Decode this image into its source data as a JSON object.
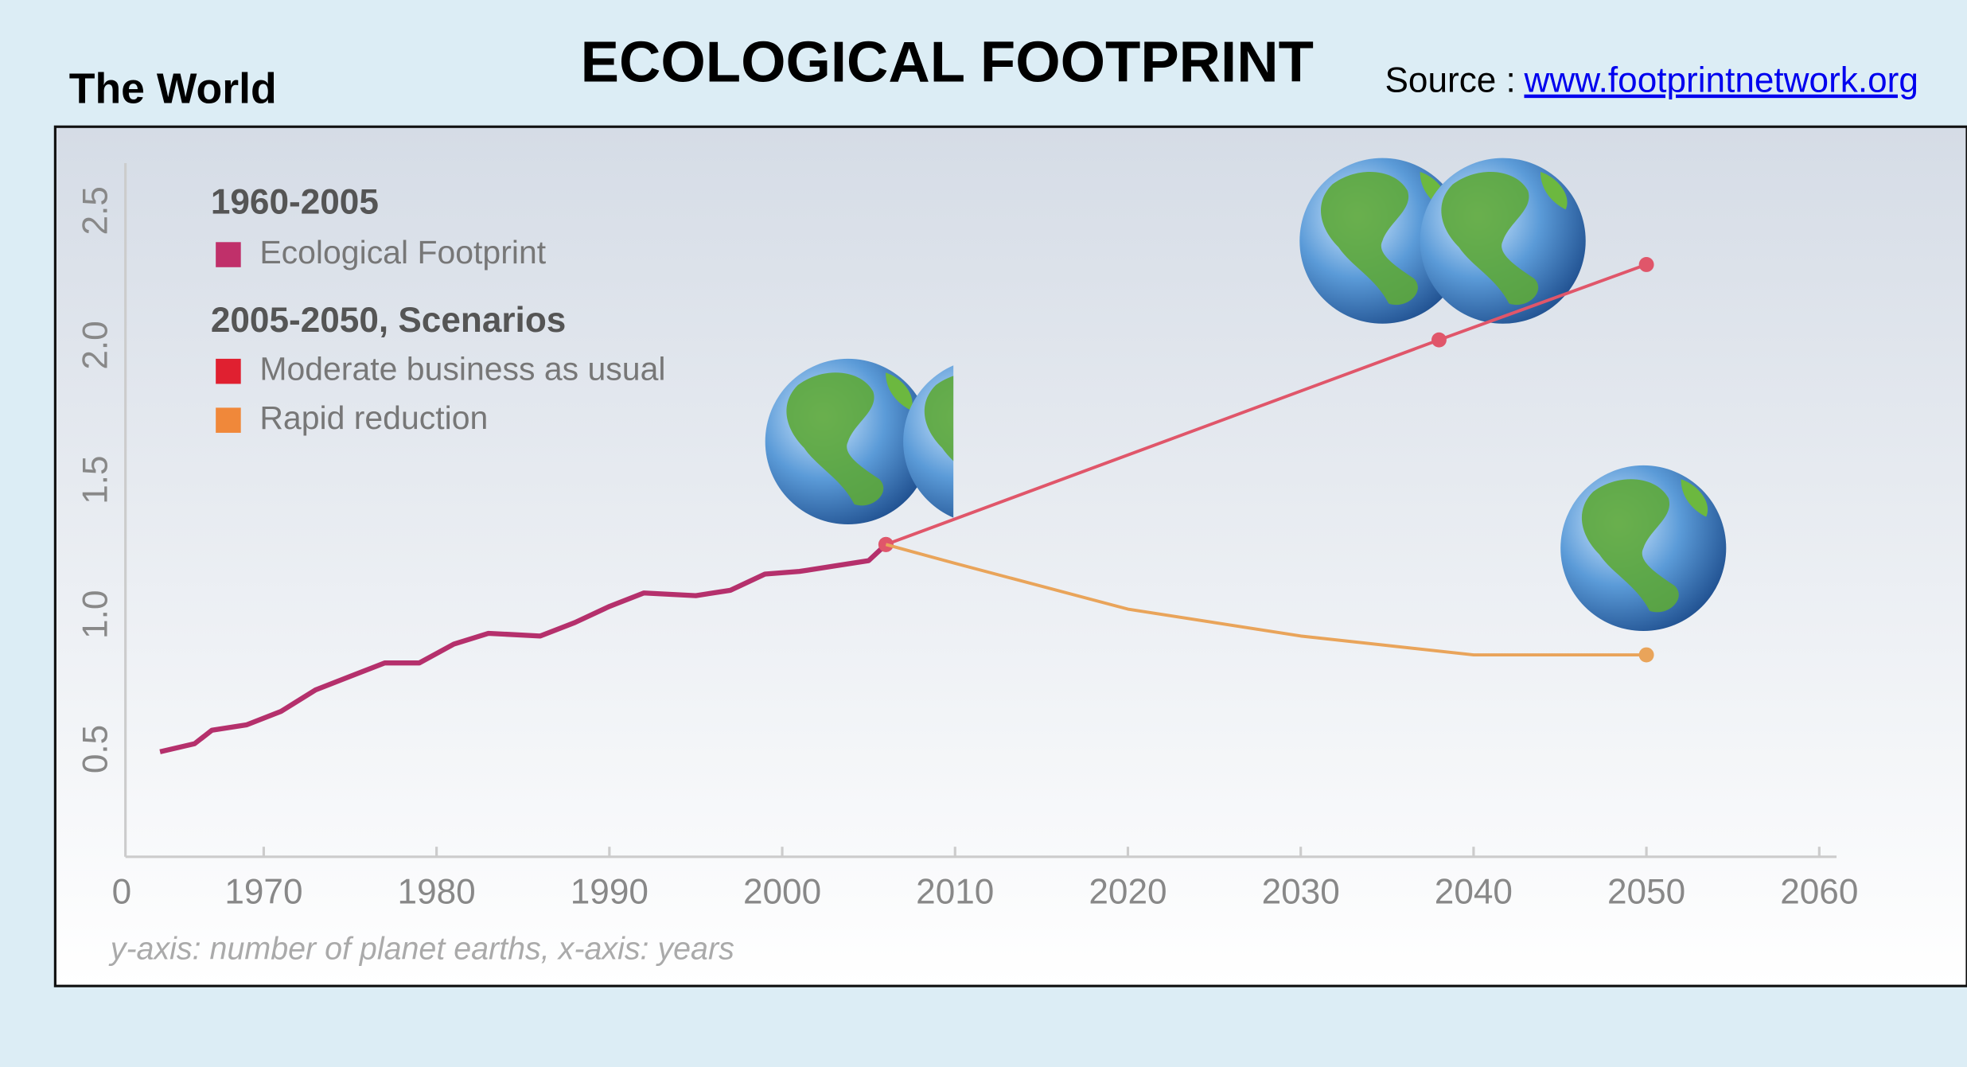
{
  "header": {
    "region": "The World",
    "title": "ECOLOGICAL FOOTPRINT",
    "source_label": "Source :",
    "source_link": "www.footprintnetwork.org"
  },
  "chart_data": {
    "type": "line",
    "legend_titles": [
      "1960-2005",
      "2005-2050, Scenarios"
    ],
    "footnote": "y-axis: number of planet earths, x-axis: years",
    "xlim": [
      1962,
      2061
    ],
    "xticks": [
      1970,
      1980,
      1990,
      2000,
      2010,
      2020,
      2030,
      2040,
      2050,
      2060
    ],
    "ylim": [
      0.1,
      2.77
    ],
    "yticks": [
      0,
      0.5,
      {
        "value": 1,
        "label": "1.0"
      },
      1.5,
      {
        "value": 2,
        "label": "2.0"
      },
      2.5
    ],
    "grid": false,
    "series": [
      {
        "name": "Ecological Footprint",
        "color": "#b5306c",
        "legend_color": "#c0306a",
        "x": [
          1964,
          1966,
          1967,
          1969,
          1971,
          1973,
          1975,
          1977,
          1979,
          1981,
          1983,
          1986,
          1988,
          1990,
          1992,
          1995,
          1997,
          1999,
          2001,
          2003,
          2005,
          2006
        ],
        "values": [
          0.49,
          0.52,
          0.57,
          0.59,
          0.64,
          0.72,
          0.77,
          0.82,
          0.82,
          0.89,
          0.93,
          0.92,
          0.97,
          1.03,
          1.08,
          1.07,
          1.09,
          1.15,
          1.16,
          1.18,
          1.2,
          1.26
        ]
      },
      {
        "name": "Moderate business as usual",
        "color": "#e0566a",
        "legend_color": "#e02030",
        "x": [
          2006,
          2038,
          2050
        ],
        "values": [
          1.26,
          2.02,
          2.3
        ]
      },
      {
        "name": "Rapid reduction",
        "color": "#e9a45a",
        "legend_color": "#f0883a",
        "x": [
          2006,
          2010,
          2020,
          2030,
          2040,
          2050
        ],
        "values": [
          1.26,
          1.19,
          1.02,
          0.92,
          0.85,
          0.85
        ]
      }
    ]
  }
}
